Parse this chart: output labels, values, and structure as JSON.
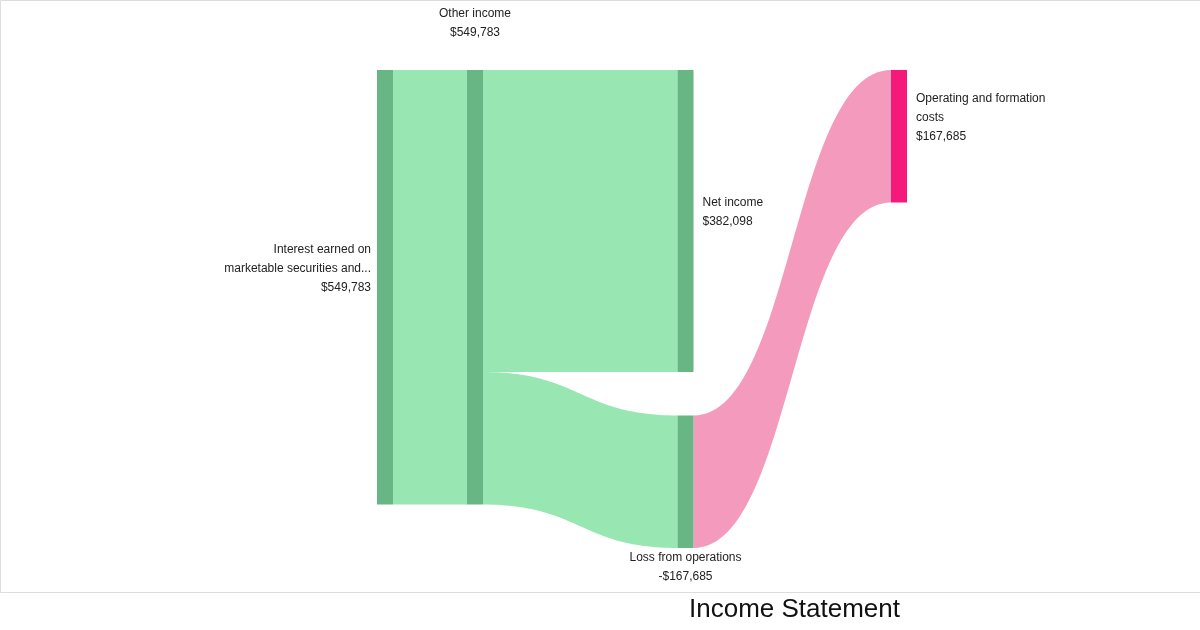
{
  "chart_data": {
    "type": "other",
    "title": "Income Statement",
    "categories": [
      "Interest earned on marketable securities and...",
      "Other income",
      "Net income",
      "Loss from operations",
      "Operating and formation costs"
    ],
    "colors": [
      "#68b684",
      "#68b684",
      "#68b684",
      "#68b684",
      "#f5197b"
    ],
    "series": [
      {
        "color": "#98e6b2",
        "values": [
          549783,
          549783,
          null,
          null,
          null
        ],
        "value_labels": [
          "$549,783",
          "$549,783",
          null,
          null,
          null
        ]
      },
      {
        "color": "#98e6b2",
        "values": [
          null,
          null,
          382098,
          -167685,
          null
        ],
        "value_labels": [
          null,
          null,
          "$382,098",
          "-$167,685",
          null
        ]
      },
      {
        "color": "#f49abd",
        "values": [
          null,
          null,
          null,
          null,
          167685
        ],
        "value_labels": [
          null,
          null,
          null,
          null,
          "$167,685"
        ]
      }
    ]
  }
}
